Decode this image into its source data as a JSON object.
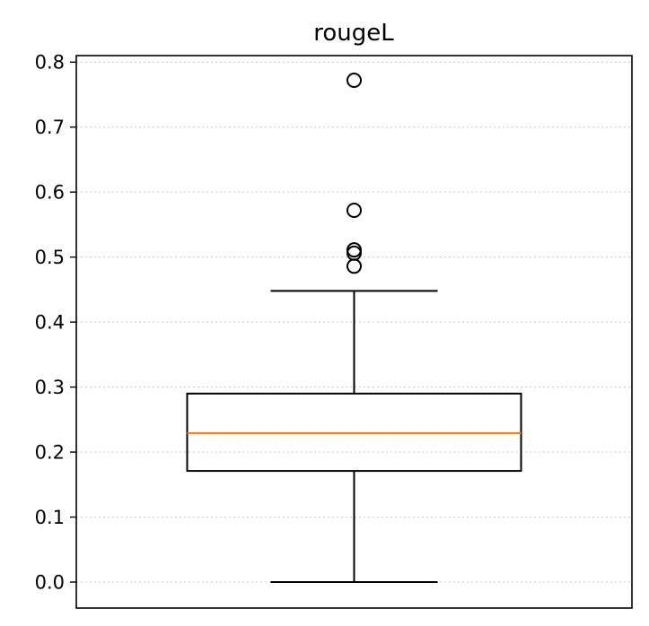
{
  "chart_data": {
    "type": "box",
    "title": "rougeL",
    "xlabel": "",
    "ylabel": "",
    "ylim": [
      -0.04,
      0.81
    ],
    "yticks": [
      0.0,
      0.1,
      0.2,
      0.3,
      0.4,
      0.5,
      0.6,
      0.7,
      0.8
    ],
    "ytick_labels": [
      "0.0",
      "0.1",
      "0.2",
      "0.3",
      "0.4",
      "0.5",
      "0.6",
      "0.7",
      "0.8"
    ],
    "grid": {
      "axis": "y",
      "style": "dotted"
    },
    "boxes": [
      {
        "whisker_low": 0.0,
        "q1": 0.171,
        "median": 0.229,
        "q3": 0.29,
        "whisker_high": 0.448,
        "outliers": [
          0.486,
          0.506,
          0.511,
          0.572,
          0.772
        ]
      }
    ],
    "colors": {
      "box": "#000000",
      "median": "#ff7f0e",
      "grid": "#d0d0d0"
    }
  }
}
